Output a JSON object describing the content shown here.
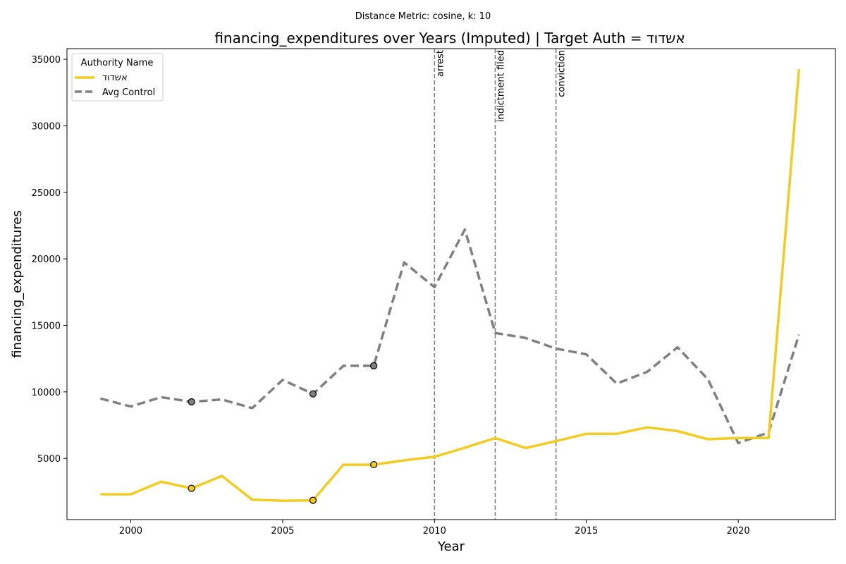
{
  "chart_data": {
    "type": "line",
    "suptitle": "Distance Metric: cosine, k: 10",
    "title": "financing_expenditures over Years (Imputed) | Target Auth = אשדוד",
    "xlabel": "Year",
    "ylabel": "financing_expenditures",
    "xlim": [
      1997.9,
      2023.2
    ],
    "ylim": [
      400,
      35800
    ],
    "x_ticks": [
      2000,
      2005,
      2010,
      2015,
      2020
    ],
    "y_ticks": [
      5000,
      10000,
      15000,
      20000,
      25000,
      30000,
      35000
    ],
    "grid": false,
    "legend": {
      "title": "Authority Name",
      "placement": "top-left"
    },
    "x": [
      1999,
      2000,
      2001,
      2002,
      2003,
      2004,
      2005,
      2006,
      2007,
      2008,
      2009,
      2010,
      2011,
      2012,
      2013,
      2014,
      2015,
      2016,
      2017,
      2018,
      2019,
      2020,
      2021,
      2022
    ],
    "series": [
      {
        "name": "אשדוד",
        "color": "#f2cc1f",
        "style": "solid",
        "values": [
          2300,
          2300,
          3250,
          2750,
          3680,
          1900,
          1820,
          1850,
          4530,
          4530,
          4850,
          5120,
          5800,
          6530,
          5780,
          6300,
          6850,
          6850,
          7330,
          7050,
          6440,
          6530,
          6530,
          34250
        ],
        "imputed_x": [
          2002,
          2006,
          2008
        ]
      },
      {
        "name": "Avg Control",
        "color": "#808080",
        "style": "dashed",
        "values": [
          9500,
          8900,
          9600,
          9250,
          9430,
          8780,
          10900,
          9850,
          11960,
          11960,
          19730,
          17870,
          22200,
          14430,
          14050,
          13250,
          12820,
          10620,
          11500,
          13350,
          10950,
          6150,
          6950,
          14300
        ],
        "imputed_x": [
          2002,
          2006,
          2008
        ]
      }
    ],
    "events": [
      {
        "x": 2010,
        "label": "arrest"
      },
      {
        "x": 2012,
        "label": "indictment filed"
      },
      {
        "x": 2014,
        "label": "conviction"
      }
    ]
  }
}
